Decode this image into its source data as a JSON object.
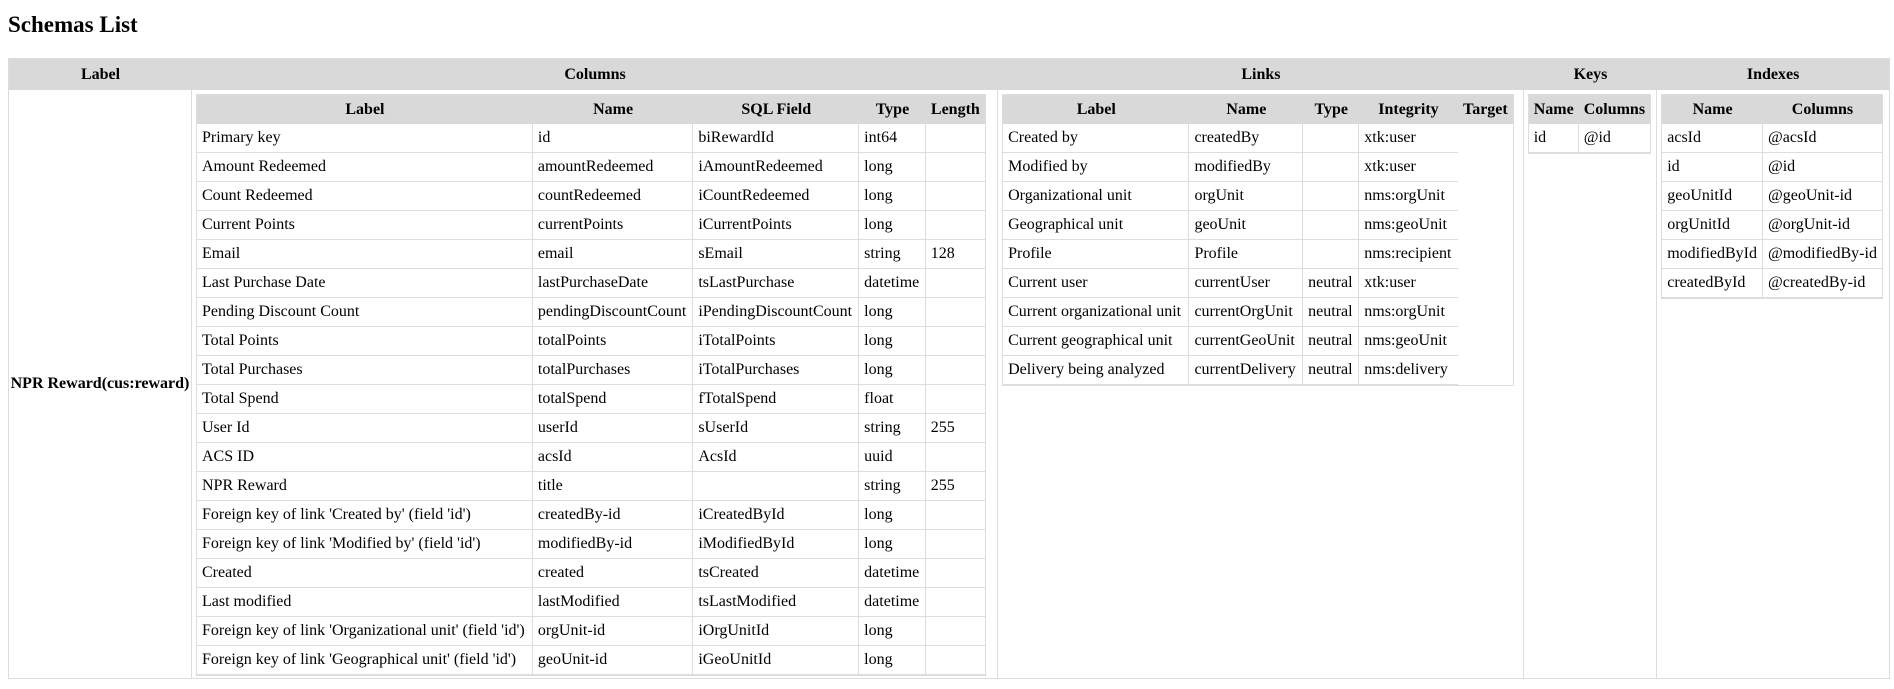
{
  "title": "Schemas List",
  "headers": [
    "Label",
    "Columns",
    "Links",
    "Keys",
    "Indexes"
  ],
  "schema_label": "NPR Reward(cus:reward)",
  "columns": {
    "headers": [
      "Label",
      "Name",
      "SQL Field",
      "Type",
      "Length"
    ],
    "rows": [
      [
        "Primary key",
        "id",
        "biRewardId",
        "int64",
        ""
      ],
      [
        "Amount Redeemed",
        "amountRedeemed",
        "iAmountRedeemed",
        "long",
        ""
      ],
      [
        "Count Redeemed",
        "countRedeemed",
        "iCountRedeemed",
        "long",
        ""
      ],
      [
        "Current Points",
        "currentPoints",
        "iCurrentPoints",
        "long",
        ""
      ],
      [
        "Email",
        "email",
        "sEmail",
        "string",
        "128"
      ],
      [
        "Last Purchase Date",
        "lastPurchaseDate",
        "tsLastPurchase",
        "datetime",
        ""
      ],
      [
        "Pending Discount Count",
        "pendingDiscountCount",
        "iPendingDiscountCount",
        "long",
        ""
      ],
      [
        "Total Points",
        "totalPoints",
        "iTotalPoints",
        "long",
        ""
      ],
      [
        "Total Purchases",
        "totalPurchases",
        "iTotalPurchases",
        "long",
        ""
      ],
      [
        "Total Spend",
        "totalSpend",
        "fTotalSpend",
        "float",
        ""
      ],
      [
        "User Id",
        "userId",
        "sUserId",
        "string",
        "255"
      ],
      [
        "ACS ID",
        "acsId",
        "AcsId",
        "uuid",
        ""
      ],
      [
        "NPR Reward",
        "title",
        "",
        "string",
        "255"
      ],
      [
        "Foreign key of link 'Created by' (field 'id')",
        "createdBy-id",
        "iCreatedById",
        "long",
        ""
      ],
      [
        "Foreign key of link 'Modified by' (field 'id')",
        "modifiedBy-id",
        "iModifiedById",
        "long",
        ""
      ],
      [
        "Created",
        "created",
        "tsCreated",
        "datetime",
        ""
      ],
      [
        "Last modified",
        "lastModified",
        "tsLastModified",
        "datetime",
        ""
      ],
      [
        "Foreign key of link 'Organizational unit' (field 'id')",
        "orgUnit-id",
        "iOrgUnitId",
        "long",
        ""
      ],
      [
        "Foreign key of link 'Geographical unit' (field 'id')",
        "geoUnit-id",
        "iGeoUnitId",
        "long",
        ""
      ]
    ]
  },
  "links": {
    "headers": [
      "Label",
      "Name",
      "Type",
      "Integrity",
      "Target"
    ],
    "rows": [
      [
        "Created by",
        "createdBy",
        "",
        "xtk:user"
      ],
      [
        "Modified by",
        "modifiedBy",
        "",
        "xtk:user"
      ],
      [
        "Organizational unit",
        "orgUnit",
        "",
        "nms:orgUnit"
      ],
      [
        "Geographical unit",
        "geoUnit",
        "",
        "nms:geoUnit"
      ],
      [
        "Profile",
        "Profile",
        "",
        "nms:recipient"
      ],
      [
        "Current user",
        "currentUser",
        "neutral",
        "xtk:user"
      ],
      [
        "Current organizational unit",
        "currentOrgUnit",
        "neutral",
        "nms:orgUnit"
      ],
      [
        "Current geographical unit",
        "currentGeoUnit",
        "neutral",
        "nms:geoUnit"
      ],
      [
        "Delivery being analyzed",
        "currentDelivery",
        "neutral",
        "nms:delivery"
      ]
    ]
  },
  "keys": {
    "headers": [
      "Name",
      "Columns"
    ],
    "rows": [
      [
        "id",
        "@id"
      ]
    ]
  },
  "indexes": {
    "headers": [
      "Name",
      "Columns"
    ],
    "rows": [
      [
        "acsId",
        "@acsId"
      ],
      [
        "id",
        "@id"
      ],
      [
        "geoUnitId",
        "@geoUnit-id"
      ],
      [
        "orgUnitId",
        "@orgUnit-id"
      ],
      [
        "modifiedById",
        "@modifiedBy-id"
      ],
      [
        "createdById",
        "@createdBy-id"
      ]
    ]
  }
}
